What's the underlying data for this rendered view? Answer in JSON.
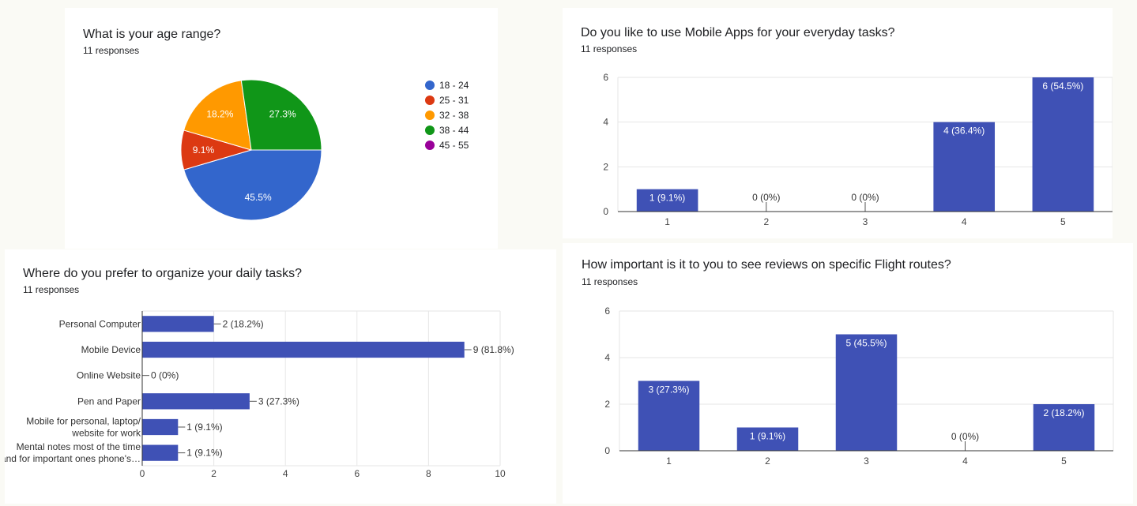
{
  "colors": {
    "bar": "#3f51b5",
    "grid": "#e6e6e6",
    "axis": "#333333",
    "pie": [
      "#3366cc",
      "#dc3912",
      "#ff9900",
      "#109618",
      "#990099"
    ]
  },
  "q1": {
    "title": "What is your age range?",
    "responses": "11 responses",
    "legend": [
      "18 - 24",
      "25 - 31",
      "32 - 38",
      "38 - 44",
      "45 - 55"
    ]
  },
  "q2": {
    "title": "Do you like to use Mobile Apps for your everyday tasks?",
    "responses": "11 responses"
  },
  "q3": {
    "title": "Where do you prefer to organize your daily tasks?",
    "responses": "11 responses"
  },
  "q4": {
    "title": "How important is it to you to see reviews on specific Flight routes?",
    "responses": "11 responses"
  },
  "chart_data": [
    {
      "type": "pie",
      "categories": [
        "18 - 24",
        "25 - 31",
        "32 - 38",
        "38 - 44",
        "45 - 55"
      ],
      "values": [
        5,
        1,
        2,
        3,
        0
      ],
      "labels": [
        "45.5%",
        "9.1%",
        "18.2%",
        "27.3%",
        ""
      ],
      "legend": "right"
    },
    {
      "type": "bar",
      "categories": [
        "1",
        "2",
        "3",
        "4",
        "5"
      ],
      "values": [
        1,
        0,
        0,
        4,
        6
      ],
      "labels": [
        "1 (9.1%)",
        "0 (0%)",
        "0 (0%)",
        "4 (36.4%)",
        "6 (54.5%)"
      ],
      "yticks": [
        "0",
        "2",
        "4",
        "6"
      ],
      "ylim": [
        0,
        6
      ],
      "grid": true
    },
    {
      "type": "bar",
      "orientation": "horizontal",
      "categories": [
        [
          "Personal Computer"
        ],
        [
          "Mobile Device"
        ],
        [
          "Online Website"
        ],
        [
          "Pen and Paper"
        ],
        [
          "Mobile for personal, laptop/",
          "website for work"
        ],
        [
          "Mental notes most of the time",
          "and for important ones phone's…"
        ]
      ],
      "values": [
        2,
        9,
        0,
        3,
        1,
        1
      ],
      "labels": [
        "2 (18.2%)",
        "9 (81.8%)",
        "0 (0%)",
        "3 (27.3%)",
        "1 (9.1%)",
        "1 (9.1%)"
      ],
      "xticks": [
        "0",
        "2",
        "4",
        "6",
        "8",
        "10"
      ],
      "xlim": [
        0,
        10
      ],
      "grid": true
    },
    {
      "type": "bar",
      "categories": [
        "1",
        "2",
        "3",
        "4",
        "5"
      ],
      "values": [
        3,
        1,
        5,
        0,
        2
      ],
      "labels": [
        "3 (27.3%)",
        "1 (9.1%)",
        "5 (45.5%)",
        "0 (0%)",
        "2 (18.2%)"
      ],
      "yticks": [
        "0",
        "2",
        "4",
        "6"
      ],
      "ylim": [
        0,
        6
      ],
      "grid": true
    }
  ]
}
